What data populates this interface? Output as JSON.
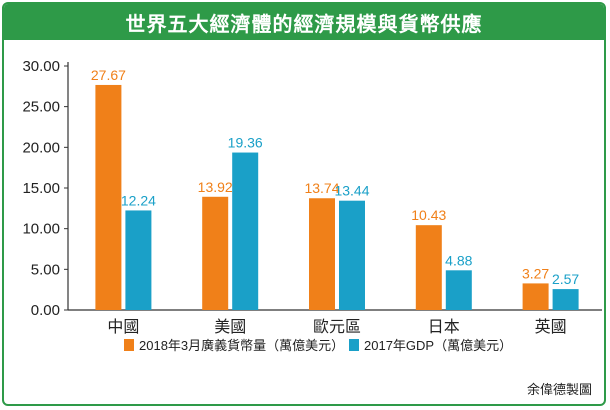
{
  "chart_data": {
    "type": "bar",
    "title": "世界五大經濟體的經濟規模與貨幣供應",
    "categories": [
      "中國",
      "美國",
      "歐元區",
      "日本",
      "英國"
    ],
    "series": [
      {
        "name": "2018年3月廣義貨幣量（萬億美元）",
        "color": "#f08019",
        "values": [
          27.67,
          13.92,
          13.74,
          10.43,
          3.27
        ]
      },
      {
        "name": "2017年GDP（萬億美元）",
        "color": "#1aa0c8",
        "values": [
          12.24,
          19.36,
          13.44,
          4.88,
          2.57
        ]
      }
    ],
    "value_labels": [
      [
        "27.67",
        "13.92",
        "13.74",
        "10.43",
        "3.27"
      ],
      [
        "12.24",
        "19.36",
        "13.44",
        "4.88",
        "2.57"
      ]
    ],
    "yticks": [
      "0.00",
      "5.00",
      "10.00",
      "15.00",
      "20.00",
      "25.00",
      "30.00"
    ],
    "ylim": [
      0,
      30
    ],
    "grid": false,
    "legend_position": "bottom"
  },
  "credit": "余偉德製圖"
}
